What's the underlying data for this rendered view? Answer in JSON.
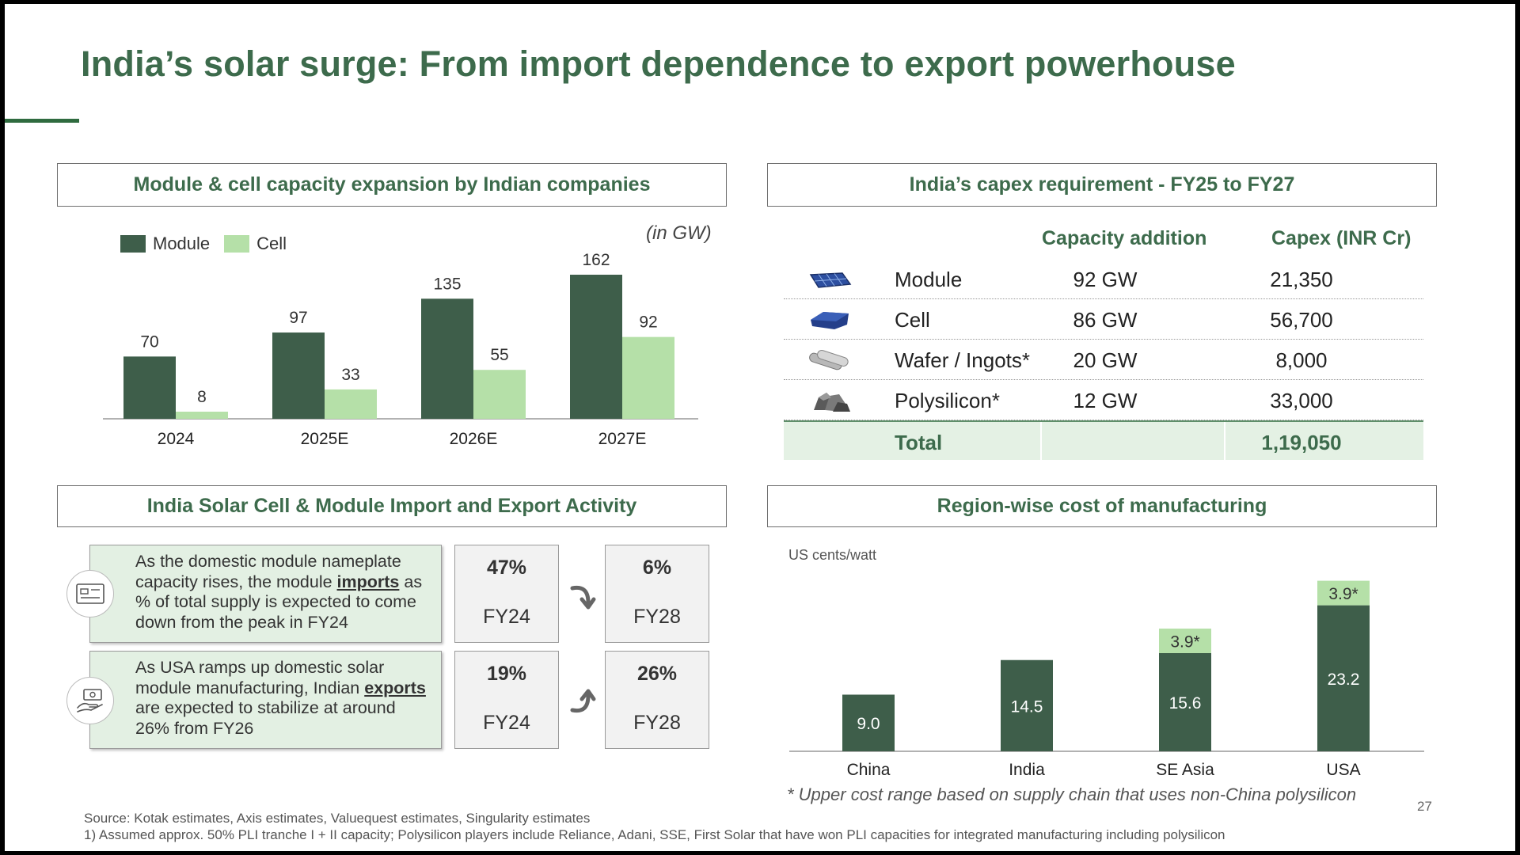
{
  "title": "India’s solar surge: From import dependence to export powerhouse",
  "panels": {
    "capacity": "Module & cell capacity expansion by Indian companies",
    "capex": "India’s capex requirement - FY25 to FY27",
    "trade": "India Solar Cell & Module Import and Export Activity",
    "cost": "Region-wise cost of manufacturing"
  },
  "colors": {
    "dark_green": "#3e5e4a",
    "light_green": "#b5e0a8",
    "title_green": "#3d6b4c"
  },
  "capacity_chart": {
    "unit_note": "(in GW)",
    "legend": {
      "module": "Module",
      "cell": "Cell"
    }
  },
  "capex_table": {
    "headers": {
      "capacity": "Capacity addition",
      "capex": "Capex (INR Cr)"
    },
    "rows": [
      {
        "name": "Module",
        "capacity": "92 GW",
        "capex": "21,350",
        "icon": "solar-panel-icon"
      },
      {
        "name": "Cell",
        "capacity": "86 GW",
        "capex": "56,700",
        "icon": "solar-cell-icon"
      },
      {
        "name": "Wafer / Ingots*",
        "capacity": "20 GW",
        "capex": "8,000",
        "icon": "ingot-icon"
      },
      {
        "name": "Polysilicon*",
        "capacity": "12 GW",
        "capex": "33,000",
        "icon": "polysilicon-rock-icon"
      }
    ],
    "total": {
      "label": "Total",
      "capex": "1,19,050"
    }
  },
  "trade": {
    "import": {
      "text_before": "As the domestic module nameplate capacity rises, the module ",
      "keyword": "imports",
      "text_after": " as % of total supply is expected to come down from the peak in FY24",
      "from": {
        "pct": "47%",
        "year": "FY24"
      },
      "to": {
        "pct": "6%",
        "year": "FY28"
      }
    },
    "export": {
      "text_before": "As USA ramps up domestic solar module manufacturing, Indian ",
      "keyword": "exports",
      "text_after": " are expected to stabilize at around 26% from FY26",
      "from": {
        "pct": "19%",
        "year": "FY24"
      },
      "to": {
        "pct": "26%",
        "year": "FY28"
      }
    }
  },
  "cost_chart_meta": {
    "unit": "US cents/watt",
    "footnote": "* Upper cost range based on supply chain that uses non-China polysilicon"
  },
  "chart_data": [
    {
      "type": "bar",
      "categories": [
        "2024",
        "2025E",
        "2026E",
        "2027E"
      ],
      "series": [
        {
          "name": "Module",
          "values": [
            70,
            97,
            135,
            162
          ]
        },
        {
          "name": "Cell",
          "values": [
            8,
            33,
            55,
            92
          ]
        }
      ],
      "title": "Module & cell capacity expansion by Indian companies",
      "ylabel": "",
      "ylim": [
        0,
        170
      ],
      "legend": "top-left",
      "grid": false
    },
    {
      "type": "bar",
      "stacked": true,
      "categories": [
        "China",
        "India",
        "SE Asia",
        "USA"
      ],
      "values": [
        9.0,
        14.5,
        15.6,
        23.2
      ],
      "labels": [
        "9.0",
        "14.5",
        "15.6",
        "23.2"
      ],
      "extra_values": [
        null,
        null,
        3.9,
        3.9
      ],
      "extra_labels": [
        "",
        "",
        "3.9*",
        "3.9*"
      ],
      "title": "Region-wise cost of manufacturing",
      "ylabel": "US cents/watt",
      "ylim": [
        0,
        28
      ],
      "grid": false
    }
  ],
  "footer": {
    "source": "Source: Kotak estimates, Axis estimates, Valuequest estimates, Singularity estimates",
    "note": "1) Assumed approx. 50% PLI tranche I + II capacity; Polysilicon players include Reliance, Adani, SSE, First Solar that have won PLI capacities for integrated manufacturing including polysilicon",
    "page": "27"
  }
}
